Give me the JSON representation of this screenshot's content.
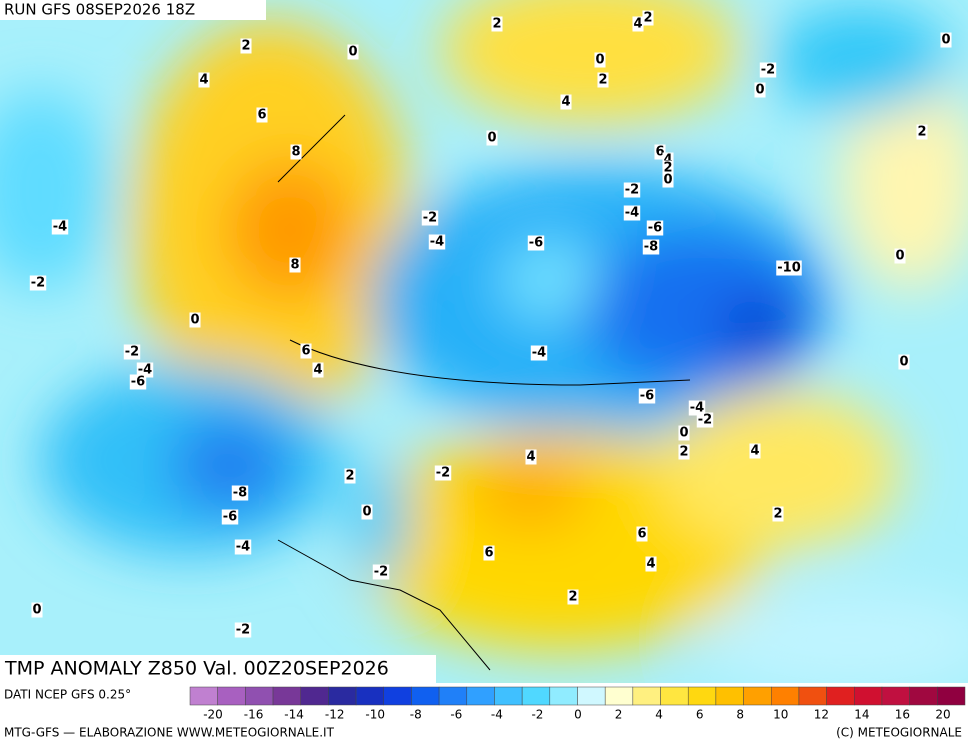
{
  "header": {
    "run": "RUN GFS 08SEP2026 18Z"
  },
  "map": {
    "caption": "TMP ANOMALY Z850 Val. 00Z20SEP2026",
    "contour_labels": [
      "2",
      "4",
      "2",
      "2",
      "0",
      "0",
      "2",
      "-2",
      "0",
      "0",
      "4",
      "4",
      "6",
      "0",
      "2",
      "8",
      "6",
      "4",
      "2",
      "0",
      "-2",
      "-4",
      "-2",
      "-6",
      "-4",
      "-4",
      "-6",
      "-8",
      "8",
      "-10",
      "0",
      "-2",
      "0",
      "-2",
      "6",
      "-4",
      "-4",
      "4",
      "-6",
      "0",
      "-6",
      "-4",
      "-2",
      "0",
      "2",
      "4",
      "4",
      "-2",
      "2",
      "-8",
      "0",
      "-6",
      "2",
      "6",
      "-4",
      "6",
      "4",
      "-2",
      "2",
      "0",
      "-2"
    ]
  },
  "colorbar": {
    "source": "DATI NCEP GFS 0.25°",
    "colors": [
      "#c080d0",
      "#a860c0",
      "#9050b0",
      "#783898",
      "#502890",
      "#2a2aa0",
      "#1830c0",
      "#1040e0",
      "#1060f0",
      "#2080f8",
      "#30a0ff",
      "#40c0ff",
      "#50d8ff",
      "#90ecff",
      "#d0f8ff",
      "#ffffd0",
      "#fff080",
      "#ffe640",
      "#ffd810",
      "#ffc000",
      "#ffa000",
      "#ff8000",
      "#f05010",
      "#e02020",
      "#d01030",
      "#c01040",
      "#a00840",
      "#900040"
    ],
    "ticks": [
      -20,
      -16,
      -14,
      -12,
      -10,
      -8,
      -6,
      -4,
      -2,
      0,
      2,
      4,
      6,
      8,
      10,
      12,
      14,
      16,
      20
    ]
  },
  "footer": {
    "left": "MTG-GFS — ELABORAZIONE WWW.METEOGIORNALE.IT",
    "right": "(C) METEOGIORNALE"
  }
}
